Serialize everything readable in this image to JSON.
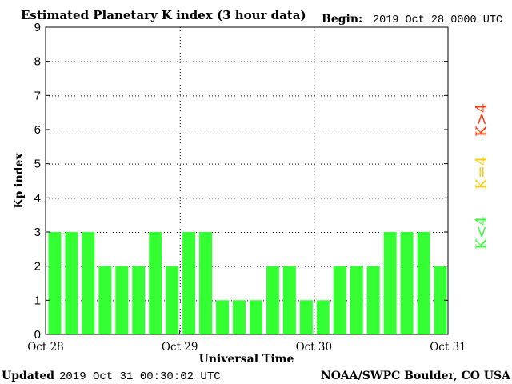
{
  "header": {
    "title": "Estimated Planetary K index (3 hour data)",
    "begin_label": "Begin:",
    "begin_value": "2019 Oct 28 0000 UTC"
  },
  "footer": {
    "updated_label": "Updated",
    "updated_value": "2019 Oct 31 00:30:02 UTC",
    "source": "NOAA/SWPC Boulder, CO USA"
  },
  "legend": {
    "k_greater": "K>4",
    "k_equal": "K=4",
    "k_less": "K<4"
  },
  "colors": {
    "k_less": "#33ff33",
    "k_equal": "#ffcc00",
    "k_greater": "#ff3300",
    "axis": "#000000",
    "grid": "#000000",
    "background": "#ffffff"
  },
  "chart_data": {
    "type": "bar",
    "title": "Estimated Planetary K index (3 hour data)",
    "xlabel": "Universal Time",
    "ylabel": "Kp index",
    "ylim": [
      0,
      9
    ],
    "yticks": [
      "0",
      "1",
      "2",
      "3",
      "4",
      "5",
      "6",
      "7",
      "8",
      "9"
    ],
    "xticks": [
      "Oct 28",
      "Oct 29",
      "Oct 30",
      "Oct 31"
    ],
    "grid": true,
    "bars_per_day": 8,
    "values": [
      3,
      3,
      3,
      2,
      2,
      2,
      3,
      2,
      3,
      3,
      1,
      1,
      1,
      2,
      2,
      1,
      1,
      2,
      2,
      2,
      3,
      3,
      3,
      2
    ]
  }
}
